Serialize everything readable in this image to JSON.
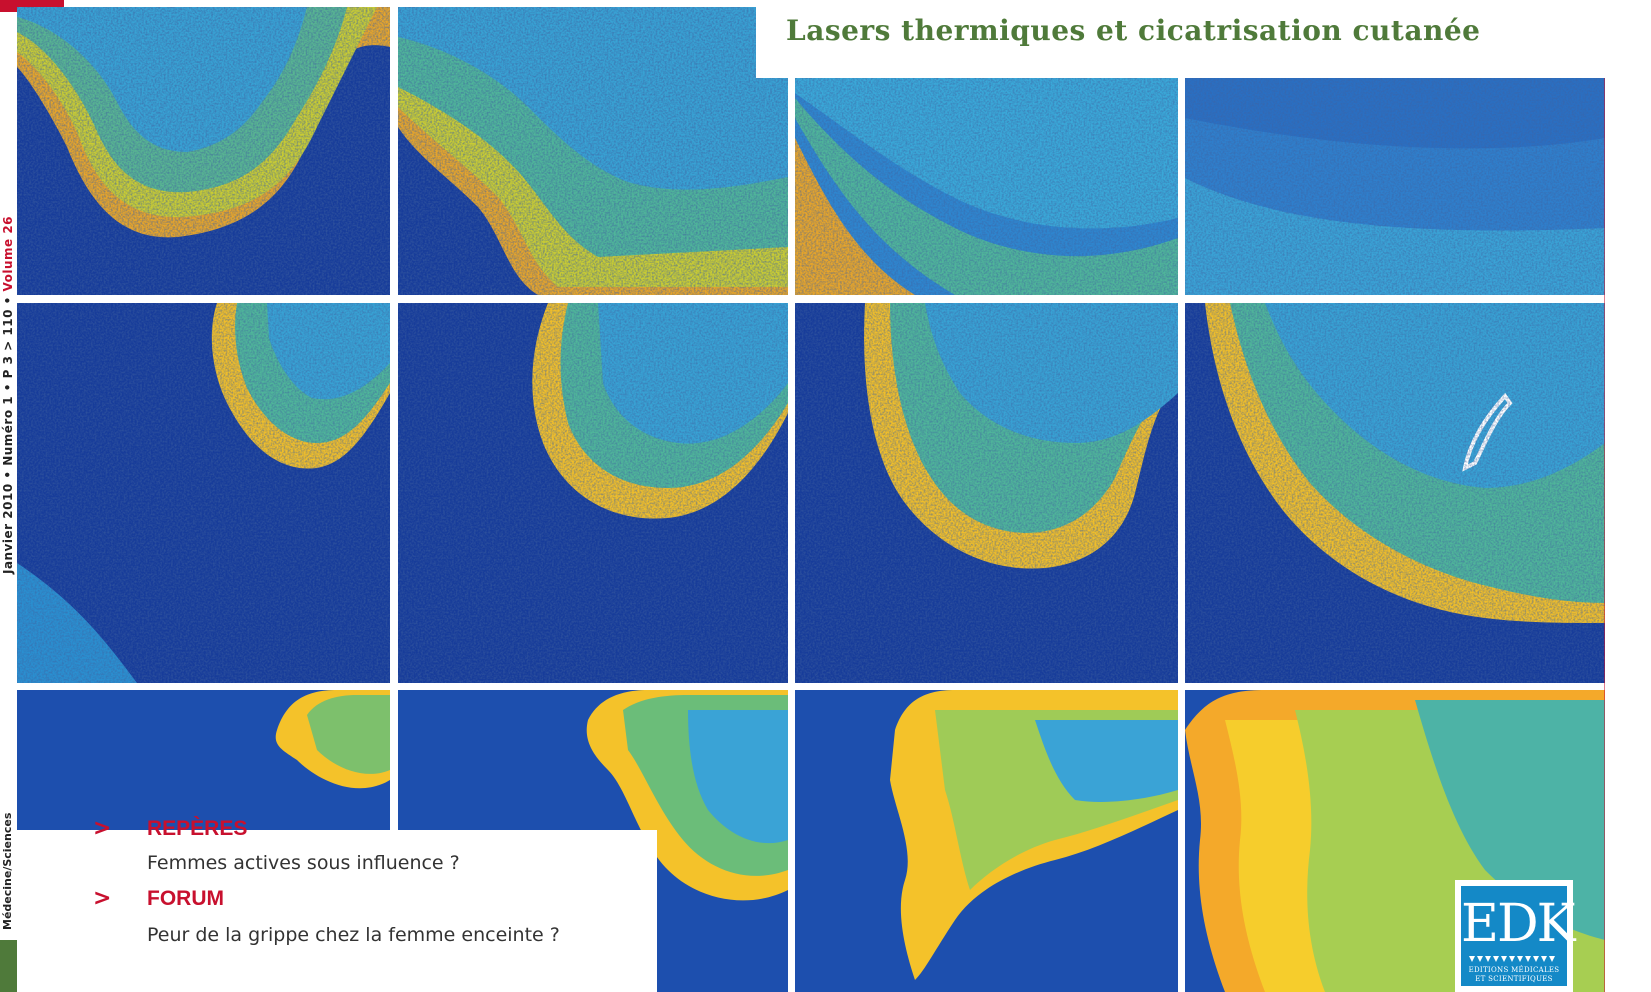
{
  "spine": {
    "issue_line": "Janvier 2010 • Numéro 1 • P 3 > 110 •",
    "volume": "Volume 26",
    "journal": "Médecine/Sciences"
  },
  "title": "Lasers thermiques et cicatrisation cutanée",
  "sections": [
    {
      "heading": "REPÈRES",
      "item": "Femmes actives sous influence ?"
    },
    {
      "heading": "FORUM",
      "item": "Peur de la grippe chez la femme enceinte ?"
    }
  ],
  "publisher": {
    "logo_letters": "EDK",
    "line1": "EDITIONS MÉDICALES",
    "line2": "ET SCIENTIFIQUES"
  },
  "colors": {
    "title_green": "#4f7a3a",
    "accent_red": "#c8102e",
    "edk_blue": "#1489c7",
    "map_background": "#173c9a"
  }
}
